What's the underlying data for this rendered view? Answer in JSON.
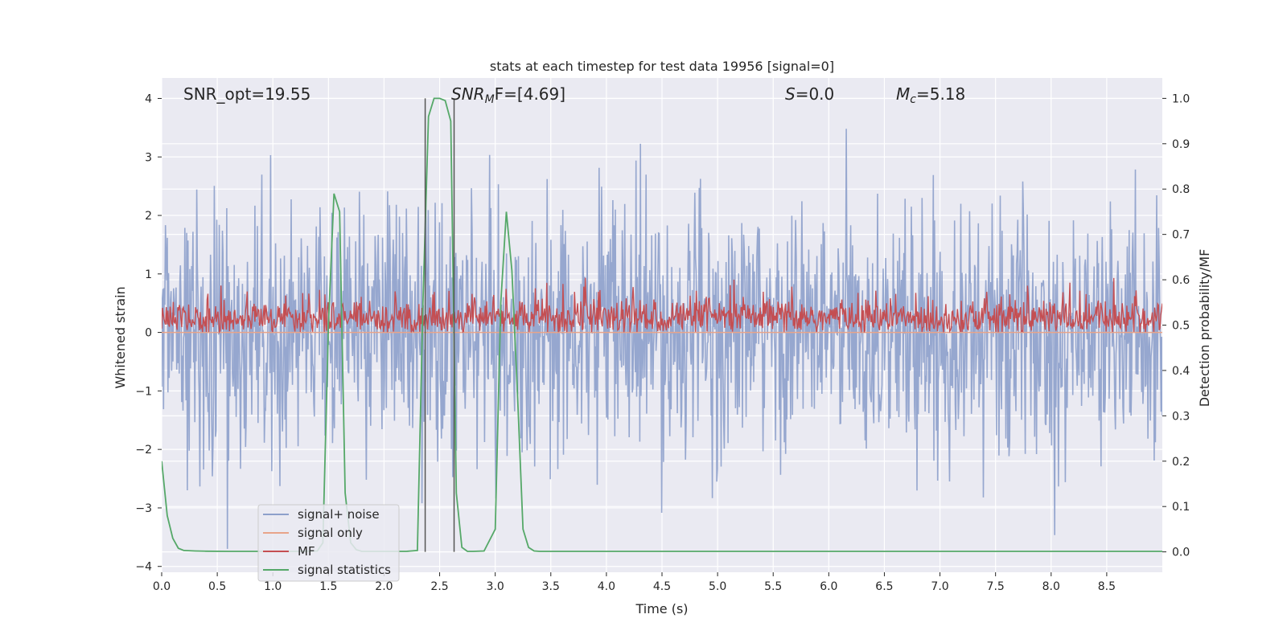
{
  "chart_data": {
    "type": "line",
    "title": "stats at each timestep for test data 19956 [signal=0]",
    "xlabel": "Time (s)",
    "ylabel": "Whitened strain",
    "y2label": "Detection probability/MF",
    "xlim": [
      0.0,
      9.0
    ],
    "ylim": [
      -4.1,
      4.35
    ],
    "y2lim": [
      -0.045,
      1.045
    ],
    "xticks": [
      "0.0",
      "0.5",
      "1.0",
      "1.5",
      "2.0",
      "2.5",
      "3.0",
      "3.5",
      "4.0",
      "4.5",
      "5.0",
      "5.5",
      "6.0",
      "6.5",
      "7.0",
      "7.5",
      "8.0",
      "8.5"
    ],
    "yticks": [
      "4",
      "3",
      "2",
      "1",
      "0",
      "−1",
      "−2",
      "−3",
      "−4"
    ],
    "y2ticks": [
      "1.0",
      "0.9",
      "0.8",
      "0.7",
      "0.6",
      "0.5",
      "0.4",
      "0.3",
      "0.2",
      "0.1",
      "0.0"
    ],
    "grid": true,
    "legend_position": "lower-left",
    "annotations": {
      "snr_opt": "SNR_opt=19.55",
      "snr_mf_sym": "SNR",
      "snr_mf_sub": "M",
      "snr_mf_rest": "F=[4.69]",
      "s_sym": "S",
      "s_rest": "=0.0",
      "mc_sym": "M",
      "mc_sub": "c",
      "mc_rest": "=5.18"
    },
    "vertical_markers": [
      2.37,
      2.63
    ],
    "series": [
      {
        "name": "signal+ noise",
        "color": "#8da0cb",
        "kind": "noise",
        "amplitude_range": [
          -3.7,
          4.0
        ]
      },
      {
        "name": "signal only",
        "color": "#e8a48a",
        "kind": "flat",
        "value": 0.0
      },
      {
        "name": "MF",
        "color": "#c44e52",
        "kind": "noise",
        "amplitude_range": [
          0.0,
          1.0
        ]
      },
      {
        "name": "signal statistics",
        "color": "#55a868",
        "axis": "right",
        "x": [
          0.0,
          0.05,
          0.1,
          0.15,
          0.2,
          0.3,
          0.4,
          0.6,
          0.8,
          1.0,
          1.2,
          1.4,
          1.45,
          1.5,
          1.55,
          1.6,
          1.65,
          1.7,
          1.75,
          1.8,
          1.9,
          2.0,
          2.1,
          2.2,
          2.3,
          2.35,
          2.4,
          2.45,
          2.5,
          2.55,
          2.6,
          2.65,
          2.7,
          2.75,
          2.8,
          2.9,
          3.0,
          3.05,
          3.1,
          3.15,
          3.2,
          3.25,
          3.3,
          3.35,
          3.4,
          3.5,
          3.6,
          4.0,
          5.0,
          6.0,
          7.0,
          8.0,
          9.0
        ],
        "y": [
          0.2,
          0.08,
          0.03,
          0.008,
          0.003,
          0.002,
          0.0015,
          0.001,
          0.001,
          0.001,
          0.001,
          0.002,
          0.02,
          0.5,
          0.79,
          0.75,
          0.13,
          0.02,
          0.005,
          0.001,
          0.001,
          0.001,
          0.001,
          0.001,
          0.003,
          0.55,
          0.96,
          1.0,
          1.0,
          0.995,
          0.95,
          0.13,
          0.01,
          0.001,
          0.001,
          0.002,
          0.05,
          0.55,
          0.75,
          0.62,
          0.35,
          0.05,
          0.01,
          0.002,
          0.001,
          0.001,
          0.001,
          0.001,
          0.001,
          0.001,
          0.001,
          0.001,
          0.001
        ]
      }
    ]
  }
}
